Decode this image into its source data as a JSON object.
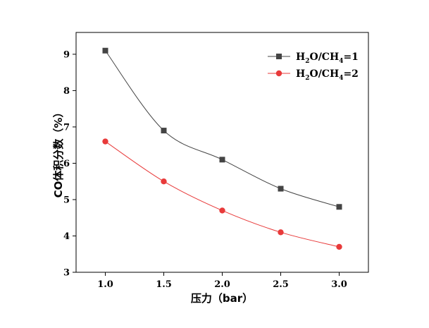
{
  "chart_data": {
    "type": "line",
    "title": "",
    "xlabel": "压力（bar）",
    "ylabel": "CO体积分数（%）",
    "xlim": [
      0.75,
      3.25
    ],
    "ylim": [
      3,
      9.6
    ],
    "xticks": [
      1.0,
      1.5,
      2.0,
      2.5,
      3.0
    ],
    "xtick_labels": [
      "1.0",
      "1.5",
      "2.0",
      "2.5",
      "3.0"
    ],
    "yticks": [
      3,
      4,
      5,
      6,
      7,
      8,
      9
    ],
    "ytick_labels": [
      "3",
      "4",
      "5",
      "6",
      "7",
      "8",
      "9"
    ],
    "x": [
      1.0,
      1.5,
      2.0,
      2.5,
      3.0
    ],
    "series": [
      {
        "name": "H2O/CH4=1",
        "name_main_1": "H",
        "name_sub_1": "2",
        "name_main_2": "O/CH",
        "name_sub_2": "4",
        "name_main_3": "=1",
        "color": "#444444",
        "marker": "square",
        "values": [
          9.1,
          6.9,
          6.1,
          5.3,
          4.8
        ]
      },
      {
        "name": "H2O/CH4=2",
        "name_main_1": "H",
        "name_sub_1": "2",
        "name_main_2": "O/CH",
        "name_sub_2": "4",
        "name_main_3": "=2",
        "color": "#e83a3a",
        "marker": "circle",
        "values": [
          6.6,
          5.5,
          4.7,
          4.1,
          3.7
        ]
      }
    ],
    "grid": false,
    "legend_position": "top-right"
  }
}
